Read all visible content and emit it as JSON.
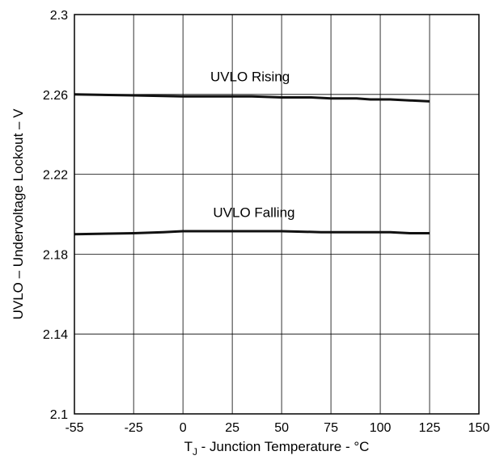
{
  "chart_data": {
    "type": "line",
    "title": "",
    "xlabel_main": "T",
    "xlabel_sub": "J",
    "xlabel_rest": " - Junction Temperature - °C",
    "ylabel": "UVLO – Undervoltage Lockout – V",
    "xlim": [
      -55,
      150
    ],
    "ylim": [
      2.1,
      2.3
    ],
    "xticks": [
      -55,
      -25,
      0,
      25,
      50,
      75,
      100,
      125,
      150
    ],
    "xtick_labels": [
      "-55",
      "-25",
      "0",
      "25",
      "50",
      "75",
      "100",
      "125",
      "150"
    ],
    "yticks": [
      2.1,
      2.14,
      2.18,
      2.22,
      2.26,
      2.3
    ],
    "ytick_labels": [
      "2.1",
      "2.14",
      "2.18",
      "2.22",
      "2.26",
      "2.3"
    ],
    "grid": true,
    "series": [
      {
        "name": "UVLO Rising",
        "x": [
          -55,
          -25,
          0,
          25,
          35,
          50,
          65,
          75,
          88,
          95,
          105,
          115,
          125
        ],
        "y": [
          2.26,
          2.2595,
          2.259,
          2.259,
          2.259,
          2.2585,
          2.2585,
          2.258,
          2.258,
          2.2575,
          2.2575,
          2.257,
          2.2565
        ]
      },
      {
        "name": "UVLO Falling",
        "x": [
          -55,
          -25,
          -10,
          0,
          25,
          50,
          70,
          100,
          105,
          115,
          125
        ],
        "y": [
          2.19,
          2.1905,
          2.191,
          2.1915,
          2.1915,
          2.1915,
          2.191,
          2.191,
          2.191,
          2.1905,
          2.1905
        ]
      }
    ],
    "annotations": [
      {
        "text": "UVLO Rising",
        "x": 34,
        "y": 2.2665
      },
      {
        "text": "UVLO Falling",
        "x": 36,
        "y": 2.1985
      }
    ]
  }
}
